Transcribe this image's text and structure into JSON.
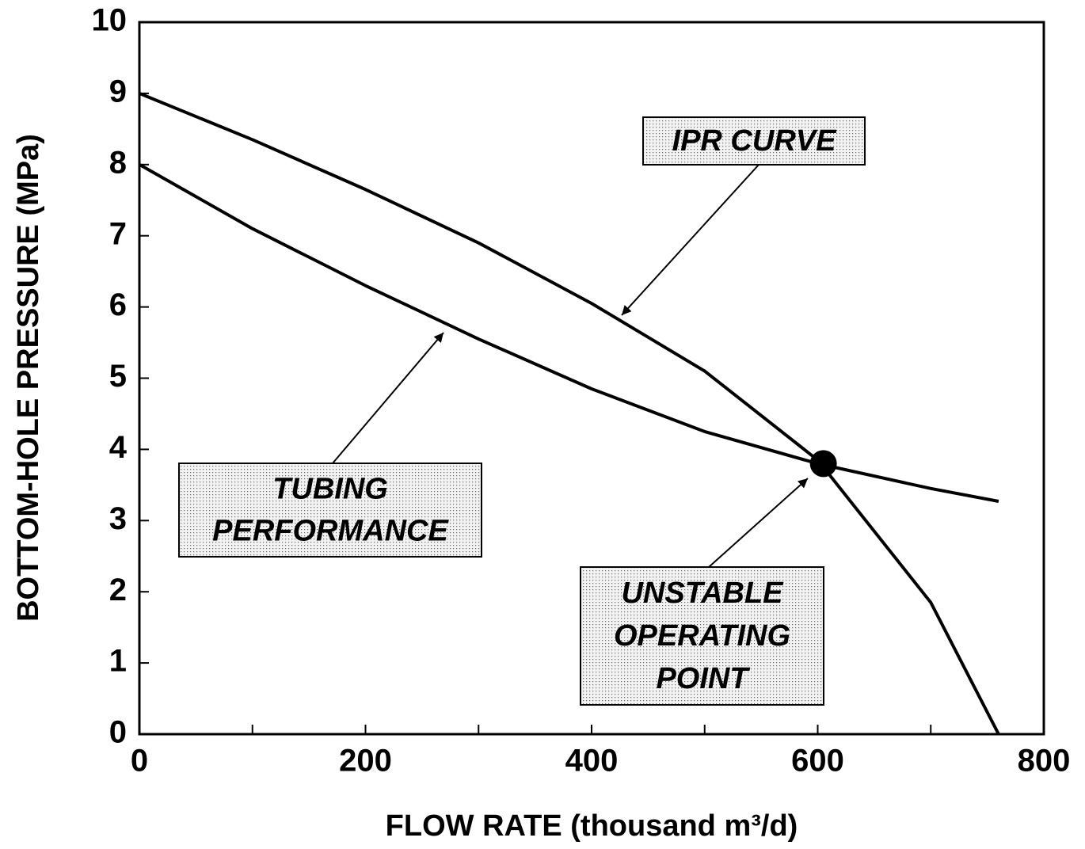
{
  "chart_data": {
    "type": "line",
    "xlabel": "FLOW RATE (thousand m³/d)",
    "ylabel": "BOTTOM-HOLE PRESSURE  (MPa)",
    "x": [
      0,
      100,
      200,
      300,
      400,
      500,
      600,
      700,
      760
    ],
    "series": [
      {
        "color": "#000000",
        "values": [
          9,
          8.35,
          7.65,
          6.9,
          6.05,
          5.1,
          3.85,
          1.85,
          0
        ]
      },
      {
        "color": "#000000",
        "values": [
          8,
          7.1,
          6.3,
          5.55,
          4.85,
          4.25,
          3.8,
          3.45,
          3.27
        ]
      }
    ],
    "operating_point": {
      "x": 605,
      "y": 3.8
    },
    "xlim": [
      0,
      800
    ],
    "xticks": [
      0,
      200,
      400,
      600,
      800
    ],
    "xminorticks": [
      100,
      300,
      500,
      700
    ],
    "ylim": [
      0,
      10
    ],
    "yticks": [
      0,
      1,
      2,
      3,
      4,
      5,
      6,
      7,
      8,
      9,
      10
    ],
    "annotations": [
      {
        "lines": [
          "IPR CURVE"
        ]
      },
      {
        "lines": [
          "TUBING",
          "PERFORMANCE"
        ]
      },
      {
        "lines": [
          "UNSTABLE",
          "OPERATING",
          "POINT"
        ]
      }
    ]
  }
}
